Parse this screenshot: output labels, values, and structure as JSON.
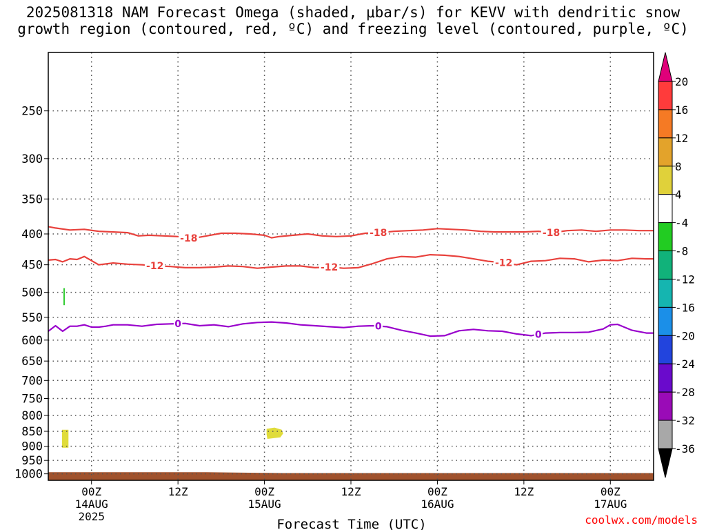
{
  "title": {
    "line1": "2025081318 NAM Forecast Omega (shaded, μbar/s) for KEVV with dendritic snow",
    "line2": "growth region (contoured, red, ºC) and freezing level (contoured, purple, ºC)"
  },
  "credit": "coolwx.com/models",
  "chart_data": {
    "type": "area",
    "title": "2025081318 NAM Forecast Omega (shaded, μbar/s) for KEVV with dendritic snow growth region (contoured, red, ºC) and freezing level (contoured, purple, ºC)",
    "xlabel": "Forecast Time (UTC)",
    "ylabel": "",
    "y_scale": "log-pressure",
    "ylim": [
      1025,
      200
    ],
    "xlim": [
      18,
      102
    ],
    "x_units": "hours after 2025-08-13 00Z",
    "x_ticks": [
      {
        "x": 24,
        "labels": [
          "00Z",
          "14AUG",
          "2025"
        ]
      },
      {
        "x": 36,
        "labels": [
          "12Z"
        ]
      },
      {
        "x": 48,
        "labels": [
          "00Z",
          "15AUG"
        ]
      },
      {
        "x": 60,
        "labels": [
          "12Z"
        ]
      },
      {
        "x": 72,
        "labels": [
          "00Z",
          "16AUG"
        ]
      },
      {
        "x": 84,
        "labels": [
          "12Z"
        ]
      },
      {
        "x": 96,
        "labels": [
          "00Z",
          "17AUG"
        ]
      }
    ],
    "y_ticks": [
      250,
      300,
      350,
      400,
      450,
      500,
      550,
      600,
      650,
      700,
      750,
      800,
      850,
      900,
      950,
      1000
    ],
    "grid": true,
    "contours": [
      {
        "level": -18,
        "label": "-18",
        "color": "#e8413c",
        "label_x": [
          37.5,
          63.8,
          87.8
        ],
        "x": [
          18,
          19,
          21,
          23,
          25,
          27,
          29,
          30.5,
          32,
          34,
          36,
          38,
          40,
          42,
          44,
          46,
          48,
          49,
          50,
          52,
          54,
          56,
          58,
          60,
          62,
          64,
          66,
          68,
          70,
          72,
          74,
          76,
          78,
          80,
          82,
          84,
          86,
          88,
          90,
          92,
          94,
          96,
          98,
          100,
          102
        ],
        "p": [
          389,
          391,
          394,
          393,
          396,
          397,
          398,
          403,
          402,
          403,
          404,
          407,
          403,
          399,
          399,
          400,
          402,
          406,
          404,
          402,
          400,
          403,
          404,
          403,
          399,
          398,
          396,
          395,
          394,
          392,
          393,
          394,
          396,
          397,
          397,
          397,
          396,
          398,
          395,
          394,
          396,
          394,
          394,
          395,
          395
        ]
      },
      {
        "level": -12,
        "label": "-12",
        "color": "#e8413c",
        "label_x": [
          32.8,
          57.0,
          81.2
        ],
        "x": [
          18,
          19,
          20,
          21,
          22,
          23,
          25,
          27,
          29,
          31,
          33,
          35,
          37,
          39,
          41,
          43,
          45,
          47,
          49,
          51,
          53,
          55,
          57,
          59,
          61,
          63,
          65,
          67,
          69,
          71,
          73,
          75,
          77,
          79,
          81,
          83,
          85,
          87,
          89,
          91,
          93,
          95,
          97,
          99,
          101,
          102
        ],
        "p": [
          442,
          441,
          445,
          440,
          441,
          436,
          450,
          447,
          449,
          450,
          452,
          453,
          455,
          455,
          454,
          452,
          453,
          456,
          454,
          452,
          452,
          455,
          454,
          456,
          455,
          448,
          440,
          436,
          437,
          433,
          434,
          436,
          440,
          444,
          446,
          450,
          444,
          443,
          439,
          440,
          445,
          442,
          443,
          439,
          440,
          440
        ]
      },
      {
        "level": 0,
        "label": "0",
        "color": "#9900cc",
        "label_x": [
          36.0,
          63.8,
          86.0
        ],
        "x": [
          18,
          19,
          20,
          21,
          22,
          23,
          24,
          25,
          26,
          27,
          29,
          31,
          33,
          35,
          37,
          39,
          41,
          43,
          45,
          47,
          49,
          51,
          53,
          55,
          57,
          59,
          61,
          63,
          65,
          67,
          69,
          71,
          73,
          75,
          77,
          79,
          81,
          83,
          85,
          87,
          89,
          91,
          93,
          95,
          96,
          97,
          99,
          101,
          102
        ],
        "p": [
          580,
          568,
          580,
          569,
          569,
          566,
          571,
          571,
          569,
          566,
          566,
          569,
          565,
          564,
          563,
          568,
          566,
          570,
          564,
          561,
          560,
          562,
          566,
          568,
          570,
          572,
          569,
          568,
          570,
          578,
          584,
          591,
          590,
          579,
          576,
          579,
          580,
          586,
          590,
          584,
          583,
          583,
          582,
          575,
          566,
          565,
          578,
          584,
          584
        ]
      }
    ],
    "shaded": [
      {
        "range": [
          4,
          8
        ],
        "color": "#e0dc3a",
        "x": [
          19.9,
          20.8,
          20.8,
          19.9
        ],
        "p": [
          845,
          845,
          905,
          905
        ]
      },
      {
        "range": [
          4,
          8
        ],
        "color": "#e0dc3a",
        "x": [
          48.3,
          49.4,
          50.4,
          50.6,
          50.2,
          48.4,
          48.3
        ],
        "p": [
          842,
          838,
          845,
          857,
          870,
          875,
          860
        ]
      },
      {
        "range": [
          -8,
          -4
        ],
        "color": "#33cc33",
        "x": [
          20.1,
          20.3,
          20.3,
          20.1
        ],
        "p": [
          492,
          492,
          525,
          525
        ]
      }
    ],
    "terrain": {
      "color": "#a0522d",
      "x": [
        18,
        40,
        50.5,
        102
      ],
      "p": [
        994,
        994,
        997,
        997
      ]
    },
    "colorbar": {
      "ticks": [
        20,
        16,
        12,
        8,
        4,
        -4,
        -8,
        -12,
        -16,
        -20,
        -24,
        -28,
        -32,
        -36
      ],
      "colors": [
        "#ff3b3b",
        "#f57a24",
        "#e3a32b",
        "#e0d13a",
        "#ffffff",
        "#22cc22",
        "#11b27a",
        "#15b5b0",
        "#1b8fe8",
        "#2244dd",
        "#6a0acc",
        "#9a0bb7",
        "#a8a8a8"
      ],
      "top_arrow": "#e0007a",
      "bottom_arrow": "#000000"
    }
  }
}
